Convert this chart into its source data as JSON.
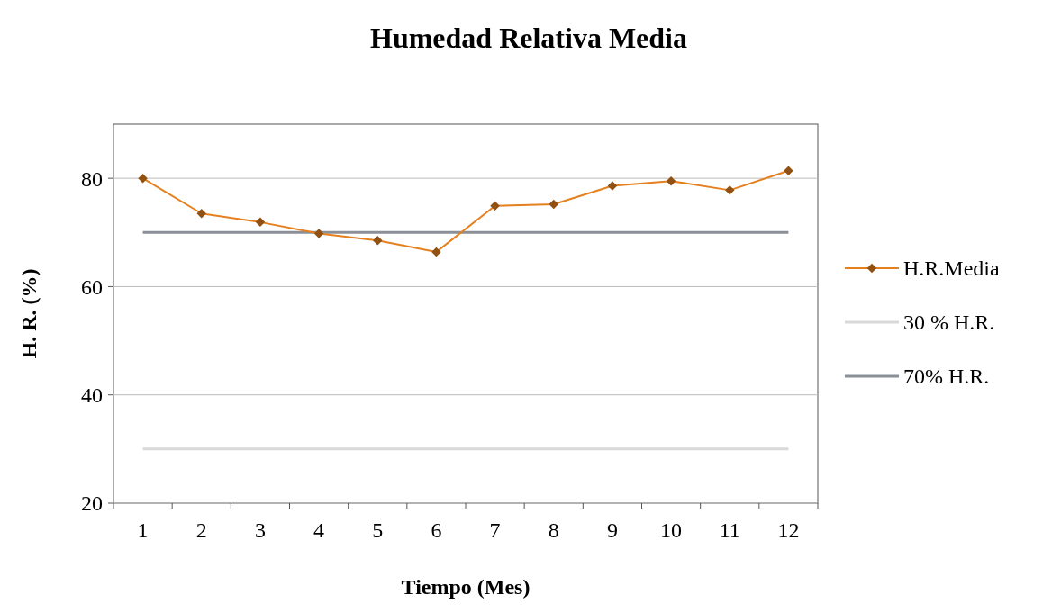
{
  "chart_data": {
    "type": "line",
    "title": "Humedad Relativa Media",
    "xlabel": "Tiempo (Mes)",
    "ylabel": "H. R. (%)",
    "x": [
      1,
      2,
      3,
      4,
      5,
      6,
      7,
      8,
      9,
      10,
      11,
      12
    ],
    "xlim": [
      0.5,
      12.5
    ],
    "xticks": [
      {
        "value": 0.5,
        "label": null
      },
      1,
      {
        "value": 1.5,
        "label": null
      },
      2,
      {
        "value": 2.5,
        "label": null
      },
      3,
      {
        "value": 3.5,
        "label": null
      },
      4,
      {
        "value": 4.5,
        "label": null
      },
      5,
      {
        "value": 5.5,
        "label": null
      },
      6,
      {
        "value": 6.5,
        "label": null
      },
      7,
      {
        "value": 7.5,
        "label": null
      },
      8,
      {
        "value": 8.5,
        "label": null
      },
      9,
      {
        "value": 9.5,
        "label": null
      },
      10,
      {
        "value": 10.5,
        "label": null
      },
      11,
      {
        "value": 11.5,
        "label": null
      },
      12,
      {
        "value": 12.5,
        "label": null
      }
    ],
    "series": [
      {
        "name": "H.R.Media",
        "color": "#e5801f",
        "marker": "diamond",
        "values": [
          80,
          73.5,
          71.9,
          69.8,
          68.5,
          66.4,
          74.9,
          75.2,
          78.6,
          79.5,
          77.8,
          81.4
        ]
      },
      {
        "name": "30 % H.R.",
        "color": "#d9d9d9",
        "marker": "none",
        "values": [
          30,
          30,
          30,
          30,
          30,
          30,
          30,
          30,
          30,
          30,
          30,
          30
        ]
      },
      {
        "name": "70% H.R.",
        "color": "#8a8f98",
        "marker": "none",
        "values": [
          70,
          70,
          70,
          70,
          70,
          70,
          70,
          70,
          70,
          70,
          70,
          70
        ]
      }
    ],
    "ylim": [
      20,
      90
    ],
    "yticks": [
      20,
      40,
      60,
      80
    ],
    "grid": "y",
    "legend": "right"
  }
}
